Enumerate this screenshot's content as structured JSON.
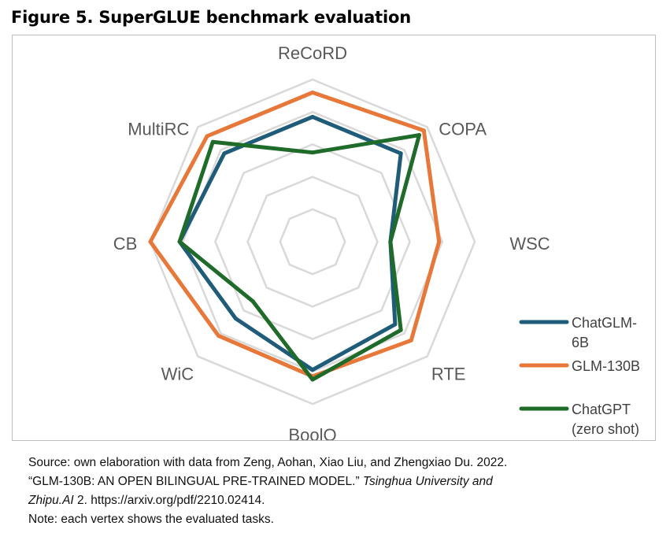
{
  "figure": {
    "title": "Figure 5. SuperGLUE benchmark evaluation"
  },
  "chart_data": {
    "type": "radar",
    "title": "",
    "axes": [
      "ReCoRD",
      "COPA",
      "WSC",
      "RTE",
      "BoolQ",
      "WiC",
      "CB",
      "MultiRC"
    ],
    "range": [
      0,
      100
    ],
    "gridlines": [
      20,
      40,
      60,
      80,
      100
    ],
    "series": [
      {
        "name": "ChatGLM-6B",
        "color": "#1f5c7a",
        "values": [
          77,
          77,
          48,
          72,
          79,
          67,
          82,
          77
        ]
      },
      {
        "name": "GLM-130B",
        "color": "#e8773a",
        "values": [
          92,
          97,
          78,
          86,
          83,
          82,
          100,
          92
        ]
      },
      {
        "name": "ChatGPT (zero shot)",
        "color": "#1e6b2a",
        "values": [
          55,
          93,
          48,
          77,
          85,
          52,
          82,
          87
        ]
      }
    ],
    "legend": {
      "position": "right",
      "entries": [
        [
          "ChatGLM-",
          "6B"
        ],
        [
          "GLM-130B"
        ],
        [
          "ChatGPT",
          "(zero shot)"
        ]
      ]
    }
  },
  "notes": {
    "source_1": "Source: own elaboration with data from Zeng, Aohan, Xiao Liu, and Zhengxiao Du. 2022.",
    "source_2": "“GLM-130B: AN OPEN BILINGUAL PRE-TRAINED MODEL.”",
    "source_journal_1": "Tsinghua University and",
    "source_journal_2": "Zhipu.AI",
    "source_tail": " 2. https://arxiv.org/pdf/2210.02414.",
    "note": "Note: each vertex shows the evaluated tasks."
  }
}
